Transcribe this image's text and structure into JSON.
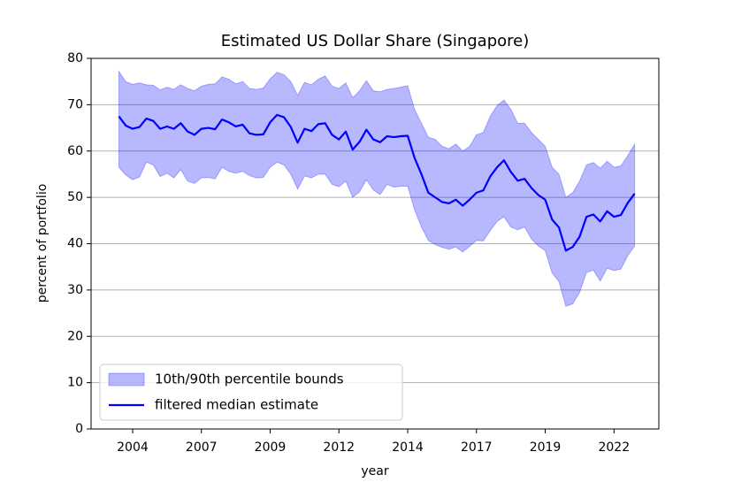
{
  "chart_data": {
    "type": "line",
    "title": "Estimated US Dollar Share (Singapore)",
    "xlabel": "year",
    "ylabel": "percent of portfolio",
    "xlim": [
      2002.99,
      2023.63
    ],
    "ylim": [
      0,
      80
    ],
    "xticks": [
      {
        "value": 2004.5,
        "label": "2004"
      },
      {
        "value": 2007,
        "label": "2007"
      },
      {
        "value": 2009.5,
        "label": "2009"
      },
      {
        "value": 2012,
        "label": "2012"
      },
      {
        "value": 2014.5,
        "label": "2014"
      },
      {
        "value": 2017,
        "label": "2017"
      },
      {
        "value": 2019.5,
        "label": "2019"
      },
      {
        "value": 2022,
        "label": "2022"
      }
    ],
    "yticks": [
      0,
      10,
      20,
      30,
      40,
      50,
      60,
      70,
      80
    ],
    "grid": "y",
    "legend": "lower left",
    "x": [
      2004,
      2004.25,
      2004.5,
      2004.75,
      2005,
      2005.25,
      2005.5,
      2005.75,
      2006,
      2006.25,
      2006.5,
      2006.75,
      2007,
      2007.25,
      2007.5,
      2007.75,
      2008,
      2008.25,
      2008.5,
      2008.75,
      2009,
      2009.25,
      2009.5,
      2009.75,
      2010,
      2010.25,
      2010.5,
      2010.75,
      2011,
      2011.25,
      2011.5,
      2011.75,
      2012,
      2012.25,
      2012.5,
      2012.75,
      2013,
      2013.25,
      2013.5,
      2013.75,
      2014,
      2014.25,
      2014.5,
      2014.75,
      2015,
      2015.25,
      2015.5,
      2015.75,
      2016,
      2016.25,
      2016.5,
      2016.75,
      2017,
      2017.25,
      2017.5,
      2017.75,
      2018,
      2018.25,
      2018.5,
      2018.75,
      2019,
      2019.25,
      2019.5,
      2019.75,
      2020,
      2020.25,
      2020.5,
      2020.75,
      2021,
      2021.25,
      2021.5,
      2021.75,
      2022,
      2022.25,
      2022.5,
      2022.75
    ],
    "series": [
      {
        "name": "10th/90th percentile bounds",
        "kind": "band",
        "color": "#0000ff",
        "opacity": 0.28,
        "upper": [
          77.2,
          75,
          74.4,
          74.7,
          74.3,
          74.2,
          73.2,
          73.8,
          73.3,
          74.3,
          73.5,
          73,
          74,
          74.4,
          74.5,
          76,
          75.5,
          74.5,
          75,
          73.5,
          73.3,
          73.6,
          75.6,
          77,
          76.5,
          75,
          72,
          74.8,
          74.3,
          75.5,
          76.2,
          74,
          73.5,
          74.7,
          71.5,
          73,
          75.2,
          73,
          72.8,
          73.3,
          73.5,
          73.8,
          74.1,
          69,
          66,
          63,
          62.5,
          61,
          60.5,
          61.5,
          60,
          61,
          63.5,
          64,
          67.5,
          69.8,
          71,
          69,
          66,
          66,
          64,
          62.5,
          61,
          56.5,
          55,
          50,
          51,
          53.5,
          57,
          57.5,
          56.3,
          57.8,
          56.5,
          56.8,
          59,
          61.5
        ],
        "lower": [
          56.5,
          54.8,
          53.8,
          54.4,
          57.6,
          57,
          54.5,
          55.2,
          54.2,
          56,
          53.5,
          53,
          54.2,
          54.3,
          54,
          56.5,
          55.6,
          55.2,
          55.6,
          54.7,
          54.2,
          54.3,
          56.5,
          57.6,
          57,
          55,
          51.8,
          54.6,
          54.2,
          55,
          55,
          52.8,
          52.3,
          53.5,
          50,
          51.2,
          53.8,
          51.6,
          50.6,
          52.8,
          52.2,
          52.4,
          52.4,
          47.3,
          43.6,
          40.7,
          39.8,
          39.2,
          38.8,
          39.3,
          38.2,
          39.4,
          40.7,
          40.6,
          42.8,
          44.8,
          45.8,
          43.6,
          43,
          43.6,
          41,
          39.5,
          38.5,
          33.7,
          31.8,
          26.5,
          27,
          29.5,
          33.8,
          34.3,
          31.9,
          34.7,
          34.2,
          34.5,
          37.4,
          39.5
        ]
      },
      {
        "name": "filtered median estimate",
        "kind": "line",
        "color": "#0000ff",
        "values": [
          67.5,
          65.5,
          64.8,
          65.2,
          67,
          66.5,
          64.8,
          65.3,
          64.8,
          66,
          64.2,
          63.5,
          64.8,
          65,
          64.7,
          66.8,
          66.2,
          65.3,
          65.7,
          63.8,
          63.5,
          63.6,
          66.2,
          67.8,
          67.3,
          65.2,
          61.8,
          64.8,
          64.3,
          65.8,
          66,
          63.5,
          62.5,
          64.2,
          60.3,
          62,
          64.6,
          62.5,
          61.9,
          63.2,
          63,
          63.2,
          63.3,
          58.5,
          55,
          51,
          50,
          49,
          48.7,
          49.5,
          48.2,
          49.5,
          51,
          51.5,
          54.5,
          56.5,
          58,
          55.5,
          53.6,
          54,
          52,
          50.5,
          49.5,
          45.2,
          43.5,
          38.5,
          39.3,
          41.5,
          45.8,
          46.3,
          44.8,
          47,
          45.8,
          46.2,
          48.8,
          50.8
        ]
      }
    ]
  }
}
